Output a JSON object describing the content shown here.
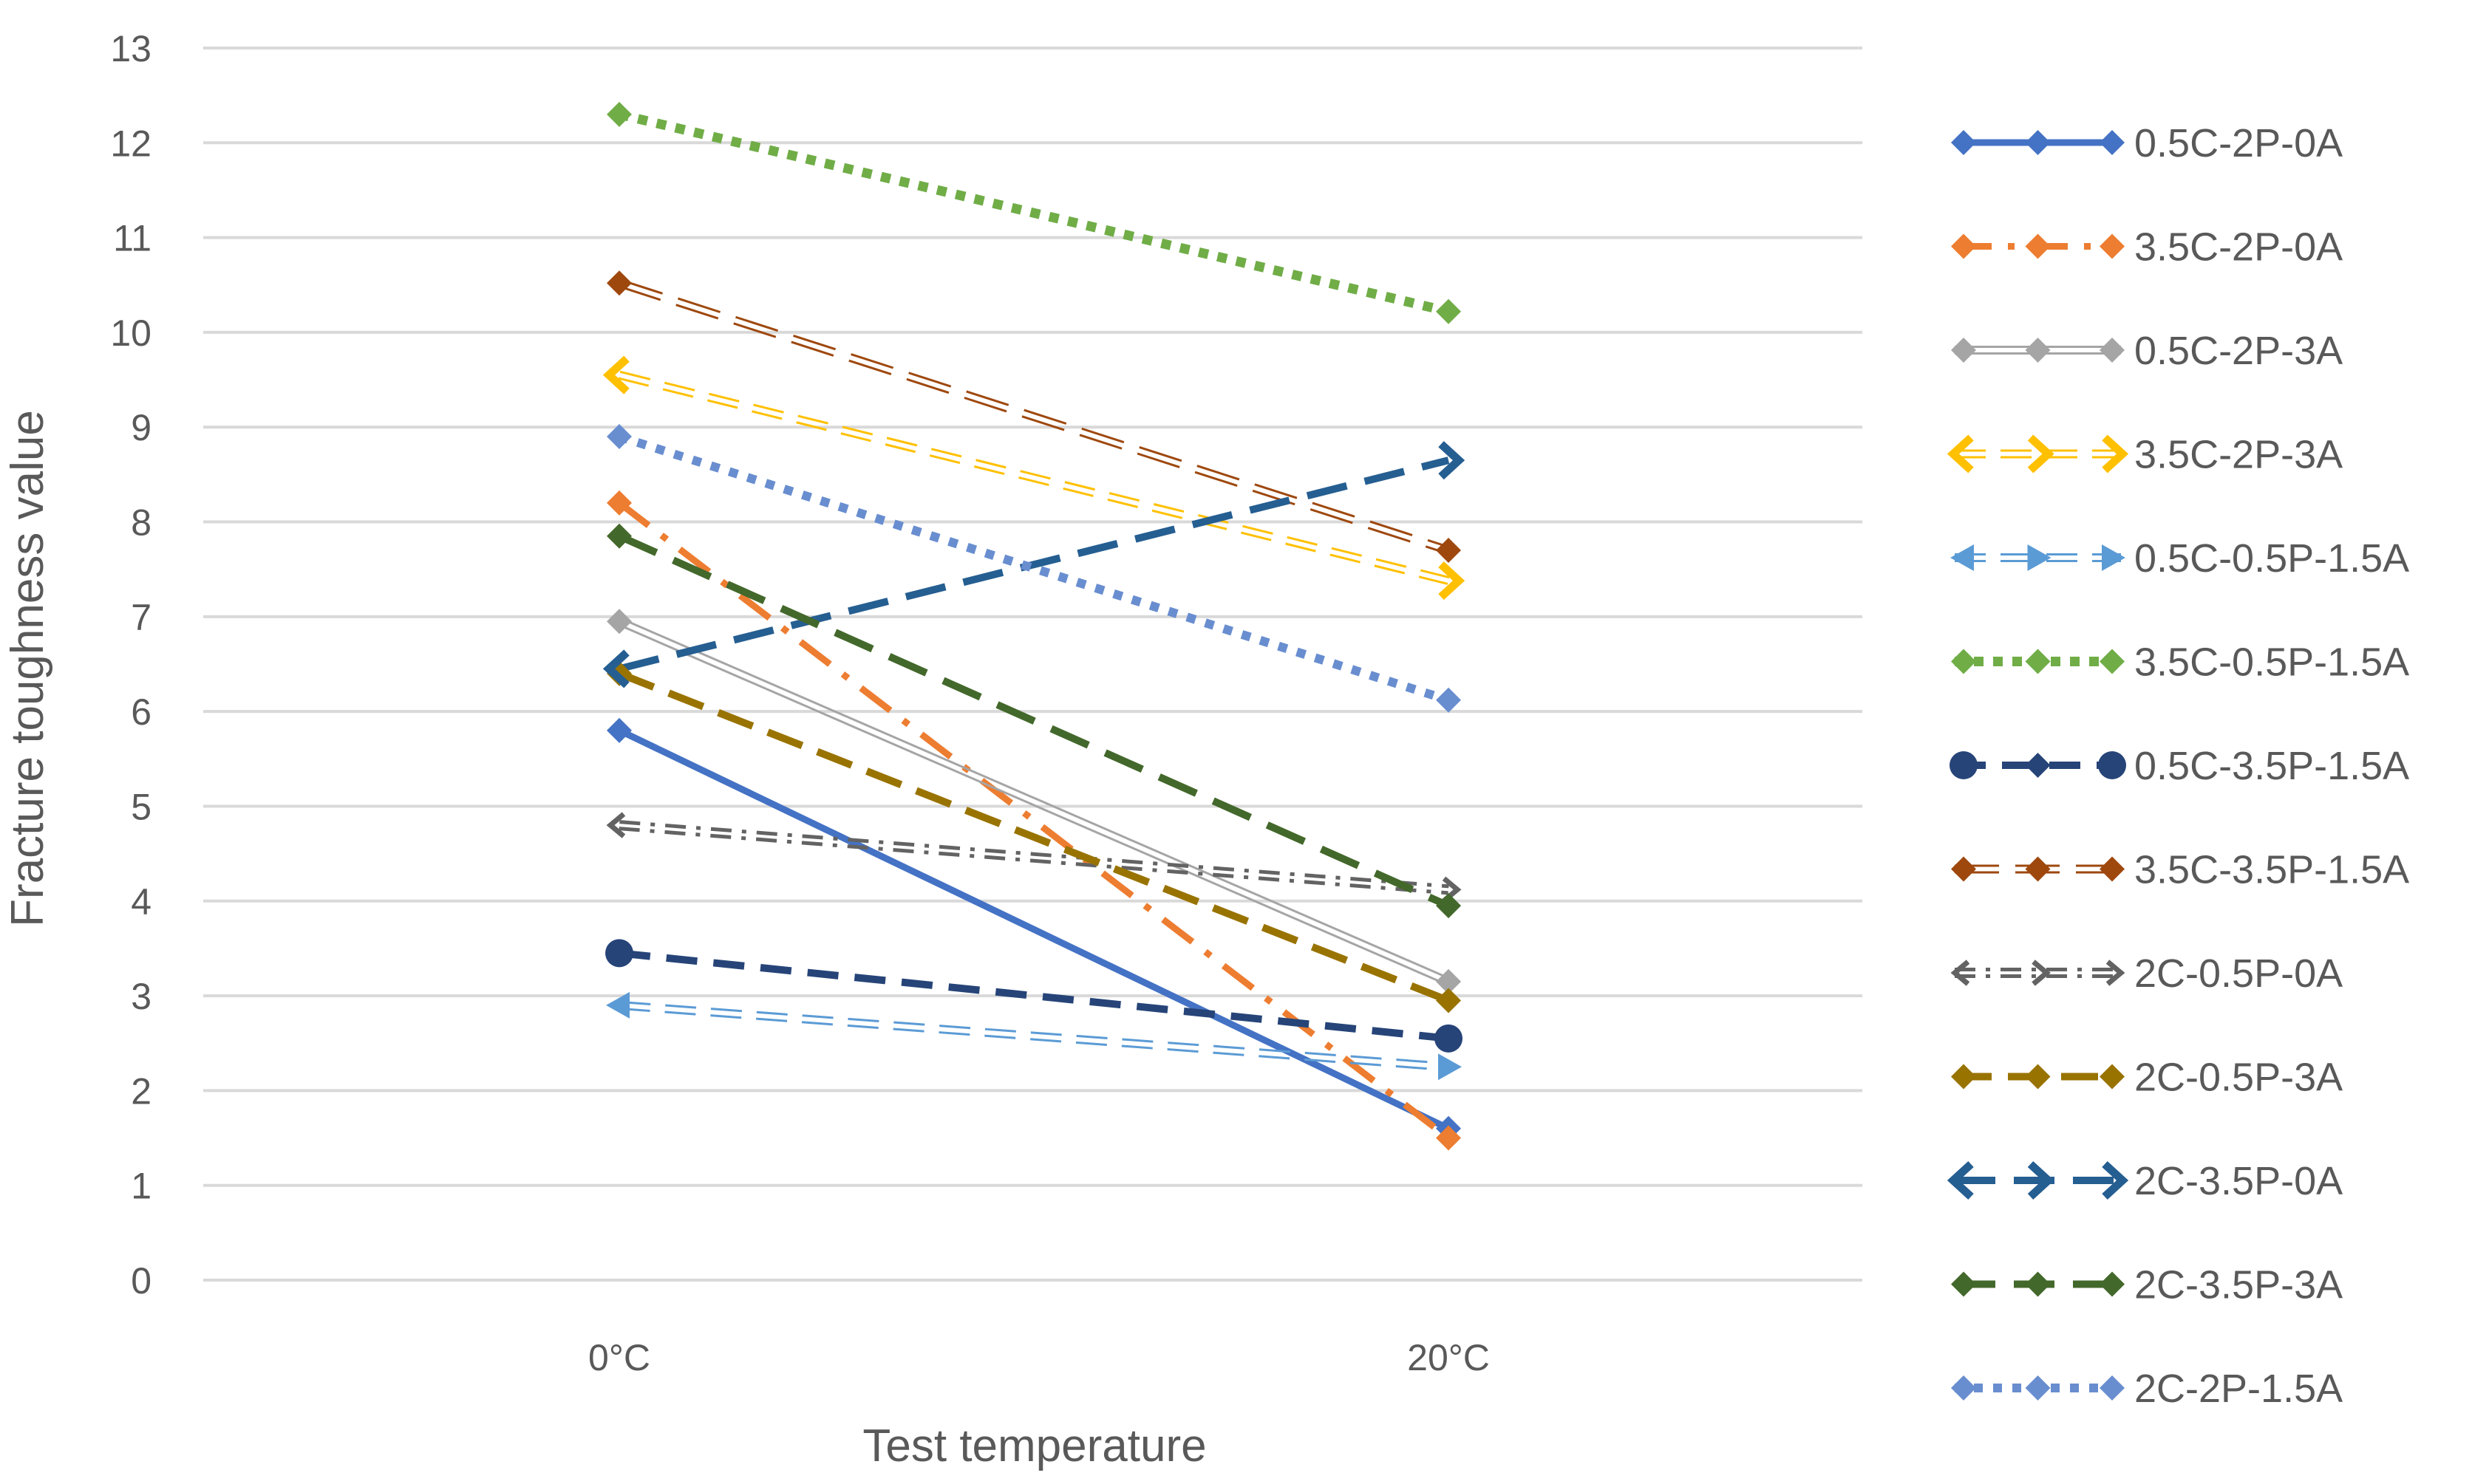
{
  "chart_data": {
    "type": "line",
    "title": "",
    "xlabel": "Test temperature",
    "ylabel": "Fracture toughness value",
    "categories": [
      "0°C",
      "20°C"
    ],
    "ylim": [
      0,
      13
    ],
    "yticks": [
      "0",
      "1",
      "2",
      "3",
      "4",
      "5",
      "6",
      "7",
      "8",
      "9",
      "10",
      "11",
      "12",
      "13"
    ],
    "grid": true,
    "legend_position": "right",
    "series": [
      {
        "name": "0.5C-2P-0A",
        "values": [
          5.8,
          1.6
        ],
        "color": "#4472C4"
      },
      {
        "name": "3.5C-2P-0A",
        "values": [
          8.2,
          1.5
        ],
        "color": "#ED7D31"
      },
      {
        "name": "0.5C-2P-3A",
        "values": [
          6.95,
          3.15
        ],
        "color": "#A5A5A5"
      },
      {
        "name": "3.5C-2P-3A",
        "values": [
          9.55,
          7.38
        ],
        "color": "#FFC000"
      },
      {
        "name": "0.5C-0.5P-1.5A",
        "values": [
          2.9,
          2.25
        ],
        "color": "#5B9BD5"
      },
      {
        "name": "3.5C-0.5P-1.5A",
        "values": [
          12.3,
          10.22
        ],
        "color": "#70AD47"
      },
      {
        "name": "0.5C-3.5P-1.5A",
        "values": [
          3.45,
          2.55
        ],
        "color": "#264478"
      },
      {
        "name": "3.5C-3.5P-1.5A",
        "values": [
          10.52,
          7.7
        ],
        "color": "#9E480E"
      },
      {
        "name": "2C-0.5P-0A",
        "values": [
          4.8,
          4.12
        ],
        "color": "#636363"
      },
      {
        "name": "2C-0.5P-3A",
        "values": [
          6.4,
          2.95
        ],
        "color": "#997300"
      },
      {
        "name": "2C-3.5P-0A",
        "values": [
          6.45,
          8.65
        ],
        "color": "#255E91"
      },
      {
        "name": "2C-3.5P-3A",
        "values": [
          7.85,
          3.95
        ],
        "color": "#43682B"
      },
      {
        "name": "2C-2P-1.5A",
        "values": [
          8.9,
          6.12
        ],
        "color": "#698ED0"
      }
    ]
  }
}
